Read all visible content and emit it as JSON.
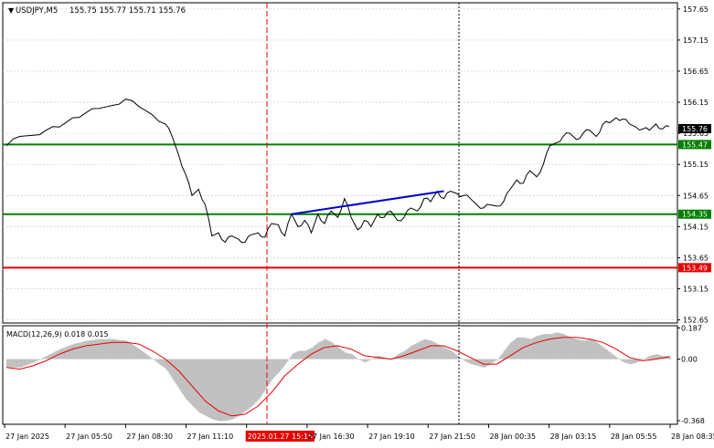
{
  "main": {
    "symbol_label": "USDJPY,M5",
    "ohlc_text": "155.75 155.77 155.71 155.76",
    "price_ticks": [
      "157.65",
      "157.15",
      "156.65",
      "156.15",
      "155.65",
      "155.15",
      "154.65",
      "154.15",
      "153.65",
      "153.15",
      "152.65"
    ],
    "price_range": [
      152.6,
      157.75
    ],
    "current_price": "155.76",
    "levels": [
      {
        "price": 155.47,
        "label": "155.47",
        "color": "#008000"
      },
      {
        "price": 154.35,
        "label": "154.35",
        "color": "#008000"
      },
      {
        "price": 153.49,
        "label": "153.49",
        "color": "#e60000"
      }
    ],
    "trendline": {
      "from": {
        "bar": 86,
        "price": 154.35
      },
      "to": {
        "bar": 132,
        "price": 154.72
      },
      "color": "#0000cc"
    }
  },
  "macd": {
    "label": "MACD(12,26,9) 0.018 0.015",
    "ticks": [
      "0.187",
      "0.00",
      "-0.368"
    ],
    "range": [
      -0.39,
      0.2
    ]
  },
  "time_axis": {
    "labels": [
      "27 Jan 2025",
      "27 Jan 05:50",
      "27 Jan 08:30",
      "27 Jan 11:10",
      "2025.01.27 15:15",
      "27 Jan 16:30",
      "27 Jan 19:10",
      "27 Jan 21:50",
      "28 Jan 00:35",
      "28 Jan 03:15",
      "28 Jan 05:55",
      "28 Jan 08:35"
    ],
    "highlight_index": 4
  },
  "colors": {
    "grid": "#c8c8c8",
    "histogram": "#c0c0c0",
    "signal": "#e60000",
    "price_line": "#000000",
    "cursor_line": "#e60000"
  },
  "chart_data": {
    "type": "line",
    "x_unit": "5-minute bar index",
    "price_series": [
      [
        0,
        155.45
      ],
      [
        4,
        155.6
      ],
      [
        8,
        155.62
      ],
      [
        12,
        155.7
      ],
      [
        16,
        155.75
      ],
      [
        20,
        155.9
      ],
      [
        24,
        155.98
      ],
      [
        28,
        156.05
      ],
      [
        32,
        156.1
      ],
      [
        36,
        156.2
      ],
      [
        40,
        156.08
      ],
      [
        44,
        155.95
      ],
      [
        48,
        155.8
      ],
      [
        50,
        155.6
      ],
      [
        52,
        155.3
      ],
      [
        54,
        155.0
      ],
      [
        56,
        154.65
      ],
      [
        58,
        154.75
      ],
      [
        60,
        154.5
      ],
      [
        62,
        154.0
      ],
      [
        64,
        154.05
      ],
      [
        66,
        153.9
      ],
      [
        68,
        154.0
      ],
      [
        70,
        153.95
      ],
      [
        72,
        153.9
      ],
      [
        74,
        154.02
      ],
      [
        76,
        154.05
      ],
      [
        78,
        153.98
      ],
      [
        80,
        154.2
      ],
      [
        82,
        154.18
      ],
      [
        84,
        154.0
      ],
      [
        86,
        154.35
      ],
      [
        88,
        154.15
      ],
      [
        90,
        154.25
      ],
      [
        92,
        154.05
      ],
      [
        94,
        154.35
      ],
      [
        96,
        154.2
      ],
      [
        98,
        154.4
      ],
      [
        100,
        154.3
      ],
      [
        102,
        154.6
      ],
      [
        104,
        154.3
      ],
      [
        106,
        154.1
      ],
      [
        108,
        154.25
      ],
      [
        110,
        154.15
      ],
      [
        112,
        154.35
      ],
      [
        114,
        154.3
      ],
      [
        116,
        154.4
      ],
      [
        118,
        154.25
      ],
      [
        120,
        154.3
      ],
      [
        122,
        154.45
      ],
      [
        124,
        154.4
      ],
      [
        126,
        154.6
      ],
      [
        128,
        154.55
      ],
      [
        130,
        154.72
      ],
      [
        132,
        154.6
      ],
      [
        134,
        154.72
      ],
      [
        136,
        154.68
      ],
      [
        138,
        154.65
      ],
      [
        140,
        154.6
      ],
      [
        142,
        154.5
      ],
      [
        144,
        154.45
      ],
      [
        146,
        154.5
      ],
      [
        148,
        154.48
      ],
      [
        150,
        154.55
      ],
      [
        152,
        154.75
      ],
      [
        154,
        154.9
      ],
      [
        156,
        154.85
      ],
      [
        158,
        155.05
      ],
      [
        160,
        154.95
      ],
      [
        162,
        155.15
      ],
      [
        164,
        155.45
      ],
      [
        166,
        155.5
      ],
      [
        168,
        155.6
      ],
      [
        170,
        155.65
      ],
      [
        172,
        155.55
      ],
      [
        174,
        155.65
      ],
      [
        176,
        155.7
      ],
      [
        178,
        155.6
      ],
      [
        180,
        155.8
      ],
      [
        182,
        155.82
      ],
      [
        184,
        155.9
      ],
      [
        186,
        155.88
      ],
      [
        188,
        155.8
      ],
      [
        190,
        155.75
      ],
      [
        192,
        155.72
      ],
      [
        194,
        155.7
      ],
      [
        196,
        155.8
      ],
      [
        198,
        155.72
      ],
      [
        200,
        155.76
      ]
    ],
    "macd_histogram": [
      [
        0,
        -0.05
      ],
      [
        4,
        -0.05
      ],
      [
        8,
        -0.02
      ],
      [
        12,
        0.02
      ],
      [
        16,
        0.06
      ],
      [
        20,
        0.09
      ],
      [
        24,
        0.11
      ],
      [
        28,
        0.12
      ],
      [
        32,
        0.12
      ],
      [
        36,
        0.11
      ],
      [
        40,
        0.06
      ],
      [
        44,
        0.0
      ],
      [
        48,
        -0.06
      ],
      [
        50,
        -0.12
      ],
      [
        52,
        -0.18
      ],
      [
        54,
        -0.24
      ],
      [
        56,
        -0.28
      ],
      [
        58,
        -0.32
      ],
      [
        60,
        -0.34
      ],
      [
        62,
        -0.36
      ],
      [
        64,
        -0.37
      ],
      [
        66,
        -0.37
      ],
      [
        68,
        -0.36
      ],
      [
        70,
        -0.34
      ],
      [
        72,
        -0.31
      ],
      [
        74,
        -0.28
      ],
      [
        76,
        -0.24
      ],
      [
        78,
        -0.18
      ],
      [
        80,
        -0.12
      ],
      [
        82,
        -0.08
      ],
      [
        84,
        -0.03
      ],
      [
        86,
        0.03
      ],
      [
        88,
        0.05
      ],
      [
        90,
        0.05
      ],
      [
        92,
        0.07
      ],
      [
        94,
        0.1
      ],
      [
        96,
        0.12
      ],
      [
        98,
        0.1
      ],
      [
        100,
        0.07
      ],
      [
        102,
        0.04
      ],
      [
        104,
        0.03
      ],
      [
        106,
        0.0
      ],
      [
        108,
        -0.02
      ],
      [
        110,
        0.0
      ],
      [
        112,
        0.02
      ],
      [
        114,
        0.01
      ],
      [
        116,
        0.0
      ],
      [
        118,
        0.03
      ],
      [
        120,
        0.05
      ],
      [
        122,
        0.08
      ],
      [
        124,
        0.1
      ],
      [
        126,
        0.12
      ],
      [
        128,
        0.11
      ],
      [
        130,
        0.09
      ],
      [
        132,
        0.07
      ],
      [
        134,
        0.05
      ],
      [
        136,
        0.02
      ],
      [
        138,
        -0.01
      ],
      [
        140,
        -0.03
      ],
      [
        142,
        -0.04
      ],
      [
        144,
        -0.05
      ],
      [
        146,
        -0.03
      ],
      [
        148,
        0.0
      ],
      [
        150,
        0.05
      ],
      [
        152,
        0.1
      ],
      [
        154,
        0.13
      ],
      [
        156,
        0.13
      ],
      [
        158,
        0.12
      ],
      [
        160,
        0.14
      ],
      [
        162,
        0.15
      ],
      [
        164,
        0.15
      ],
      [
        166,
        0.16
      ],
      [
        168,
        0.15
      ],
      [
        170,
        0.13
      ],
      [
        172,
        0.12
      ],
      [
        174,
        0.11
      ],
      [
        176,
        0.12
      ],
      [
        178,
        0.1
      ],
      [
        180,
        0.07
      ],
      [
        182,
        0.04
      ],
      [
        184,
        0.01
      ],
      [
        186,
        -0.02
      ],
      [
        188,
        -0.03
      ],
      [
        190,
        -0.02
      ],
      [
        192,
        0.0
      ],
      [
        194,
        0.02
      ],
      [
        196,
        0.03
      ],
      [
        198,
        0.018
      ],
      [
        200,
        0.018
      ]
    ],
    "macd_signal": [
      [
        0,
        -0.05
      ],
      [
        4,
        -0.06
      ],
      [
        8,
        -0.04
      ],
      [
        12,
        -0.01
      ],
      [
        16,
        0.03
      ],
      [
        20,
        0.06
      ],
      [
        24,
        0.08
      ],
      [
        28,
        0.09
      ],
      [
        32,
        0.1
      ],
      [
        36,
        0.1
      ],
      [
        40,
        0.09
      ],
      [
        44,
        0.05
      ],
      [
        48,
        0.0
      ],
      [
        52,
        -0.07
      ],
      [
        56,
        -0.16
      ],
      [
        60,
        -0.25
      ],
      [
        64,
        -0.31
      ],
      [
        68,
        -0.34
      ],
      [
        72,
        -0.33
      ],
      [
        76,
        -0.28
      ],
      [
        80,
        -0.2
      ],
      [
        84,
        -0.1
      ],
      [
        88,
        -0.03
      ],
      [
        92,
        0.03
      ],
      [
        96,
        0.07
      ],
      [
        100,
        0.08
      ],
      [
        104,
        0.06
      ],
      [
        108,
        0.02
      ],
      [
        112,
        0.01
      ],
      [
        116,
        0.0
      ],
      [
        120,
        0.02
      ],
      [
        124,
        0.05
      ],
      [
        128,
        0.08
      ],
      [
        132,
        0.08
      ],
      [
        136,
        0.05
      ],
      [
        140,
        0.01
      ],
      [
        144,
        -0.03
      ],
      [
        148,
        -0.03
      ],
      [
        152,
        0.02
      ],
      [
        156,
        0.07
      ],
      [
        160,
        0.1
      ],
      [
        164,
        0.12
      ],
      [
        168,
        0.13
      ],
      [
        172,
        0.13
      ],
      [
        176,
        0.12
      ],
      [
        180,
        0.1
      ],
      [
        184,
        0.06
      ],
      [
        188,
        0.01
      ],
      [
        192,
        -0.01
      ],
      [
        196,
        0.0
      ],
      [
        200,
        0.015
      ]
    ]
  }
}
